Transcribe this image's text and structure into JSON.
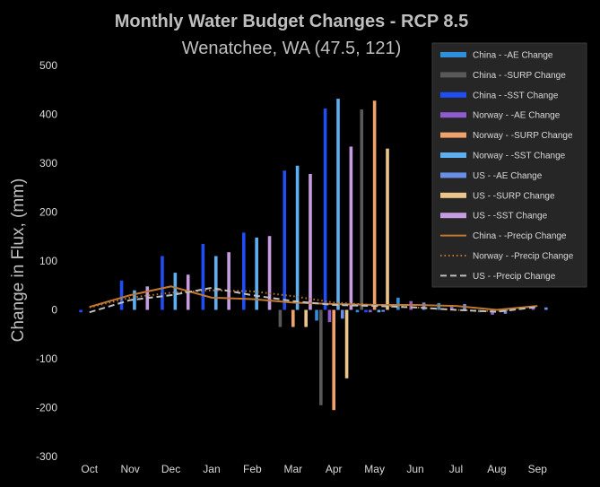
{
  "chart_data": {
    "type": "bar",
    "title": "Monthly Water Budget Changes - RCP 8.5",
    "subtitle": "Wenatchee, WA (47.5, 121)",
    "xlabel": "",
    "ylabel": "Change in Flux, (mm)",
    "ylim": [
      -300,
      500
    ],
    "yticks": [
      -300,
      -200,
      -100,
      0,
      100,
      200,
      300,
      400,
      500
    ],
    "grid": false,
    "legend_position": "top-right",
    "categories": [
      "Oct",
      "Nov",
      "Dec",
      "Jan",
      "Feb",
      "Mar",
      "Apr",
      "May",
      "Jun",
      "Jul",
      "Aug",
      "Sep"
    ],
    "series": [
      {
        "name": "China - -AE Change",
        "type": "bar",
        "color": "#2f8fd8",
        "values": [
          0,
          0,
          0,
          0,
          0,
          0,
          -22,
          -5,
          25,
          14,
          -5,
          6
        ]
      },
      {
        "name": "China - -SURP Change",
        "type": "bar",
        "color": "#595959",
        "values": [
          0,
          0,
          0,
          0,
          0,
          -35,
          -195,
          410,
          0,
          0,
          0,
          0
        ]
      },
      {
        "name": "China - -SST Change",
        "type": "bar",
        "color": "#1f4ef5",
        "values": [
          -5,
          60,
          110,
          135,
          158,
          285,
          412,
          -5,
          0,
          0,
          0,
          0
        ]
      },
      {
        "name": "Norway - -AE Change",
        "type": "bar",
        "color": "#8e5bd0",
        "values": [
          0,
          0,
          0,
          0,
          0,
          0,
          -25,
          -5,
          18,
          10,
          -10,
          7
        ]
      },
      {
        "name": "Norway - -SURP Change",
        "type": "bar",
        "color": "#f0a26a",
        "values": [
          0,
          0,
          0,
          0,
          0,
          -35,
          -205,
          428,
          0,
          0,
          0,
          0
        ]
      },
      {
        "name": "Norway - -SST Change",
        "type": "bar",
        "color": "#5dafef",
        "values": [
          0,
          40,
          76,
          110,
          148,
          295,
          432,
          -5,
          0,
          0,
          0,
          0
        ]
      },
      {
        "name": "US - -AE Change",
        "type": "bar",
        "color": "#6a8fe6",
        "values": [
          0,
          0,
          0,
          0,
          0,
          0,
          -18,
          -4,
          15,
          12,
          -8,
          5
        ]
      },
      {
        "name": "US - -SURP Change",
        "type": "bar",
        "color": "#ebc58a",
        "values": [
          0,
          0,
          0,
          0,
          0,
          -35,
          -140,
          330,
          0,
          0,
          0,
          0
        ]
      },
      {
        "name": "US - -SST Change",
        "type": "bar",
        "color": "#c59ce0",
        "values": [
          0,
          48,
          72,
          118,
          151,
          278,
          334,
          0,
          0,
          0,
          0,
          0
        ]
      },
      {
        "name": "China - -Precip Change",
        "type": "line",
        "style": "solid",
        "color": "#c07830",
        "values": [
          6,
          30,
          48,
          25,
          22,
          15,
          12,
          10,
          10,
          8,
          0,
          8
        ]
      },
      {
        "name": "Norway - -Precip Change",
        "type": "line",
        "style": "dotted",
        "color": "#c07830",
        "values": [
          5,
          25,
          35,
          40,
          38,
          28,
          15,
          10,
          5,
          0,
          -3,
          8
        ]
      },
      {
        "name": "US - -Precip Change",
        "type": "line",
        "style": "dashed",
        "color": "#bfbfbf",
        "values": [
          -5,
          20,
          30,
          45,
          30,
          18,
          10,
          8,
          5,
          0,
          -4,
          6
        ]
      }
    ]
  }
}
